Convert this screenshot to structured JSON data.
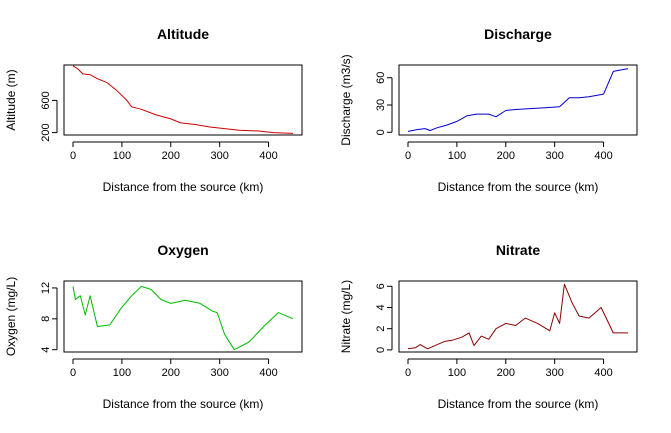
{
  "chart_data": [
    {
      "type": "line",
      "title": "Altitude",
      "xlabel": "Distance from the source (km)",
      "ylabel": "Altitude (m)",
      "xlim": [
        0,
        450
      ],
      "ylim": [
        170,
        1040
      ],
      "xticks": [
        0,
        100,
        200,
        300,
        400
      ],
      "yticks": [
        200,
        600
      ],
      "series": [
        {
          "color": "#cc0000",
          "x": [
            0,
            10,
            20,
            35,
            50,
            70,
            90,
            110,
            120,
            140,
            170,
            200,
            220,
            250,
            280,
            310,
            340,
            380,
            410,
            450
          ],
          "y": [
            1030,
            990,
            930,
            920,
            870,
            820,
            720,
            600,
            520,
            490,
            420,
            370,
            320,
            300,
            270,
            250,
            230,
            220,
            200,
            190
          ]
        }
      ]
    },
    {
      "type": "line",
      "title": "Discharge",
      "xlabel": "Distance from the source (km)",
      "ylabel": "Discharge (m3/s)",
      "xlim": [
        0,
        450
      ],
      "ylim": [
        -3,
        74
      ],
      "xticks": [
        0,
        100,
        200,
        300,
        400
      ],
      "yticks": [
        0,
        30,
        60
      ],
      "series": [
        {
          "color": "#0000cc",
          "x": [
            0,
            20,
            35,
            45,
            60,
            80,
            100,
            120,
            140,
            165,
            180,
            200,
            220,
            250,
            280,
            310,
            330,
            350,
            370,
            400,
            420,
            450
          ],
          "y": [
            1,
            3,
            4,
            2,
            5,
            8,
            12,
            18,
            20,
            20,
            17,
            24,
            25,
            26,
            27,
            28,
            38,
            38,
            39,
            42,
            67,
            70
          ]
        }
      ]
    },
    {
      "type": "line",
      "title": "Oxygen",
      "xlabel": "Distance from the source (km)",
      "ylabel": "Oxygen (mg/L)",
      "xlim": [
        0,
        450
      ],
      "ylim": [
        3.7,
        12.9
      ],
      "xticks": [
        0,
        100,
        200,
        300,
        400
      ],
      "yticks": [
        4,
        8,
        12
      ],
      "series": [
        {
          "color": "#00bb00",
          "x": [
            0,
            5,
            15,
            25,
            35,
            50,
            75,
            100,
            120,
            140,
            160,
            180,
            200,
            230,
            260,
            285,
            295,
            310,
            330,
            360,
            390,
            420,
            450
          ],
          "y": [
            12.2,
            10.5,
            11.0,
            8.5,
            11.0,
            7.0,
            7.2,
            9.5,
            11.0,
            12.2,
            11.8,
            10.5,
            10.0,
            10.4,
            10.0,
            9.0,
            8.8,
            6.0,
            4.0,
            5.0,
            7.0,
            8.8,
            8.0
          ]
        }
      ]
    },
    {
      "type": "line",
      "title": "Nitrate",
      "xlabel": "Distance from the source (km)",
      "ylabel": "Nitrate (mg/L)",
      "xlim": [
        0,
        450
      ],
      "ylim": [
        -0.2,
        6.5
      ],
      "xticks": [
        0,
        100,
        200,
        300,
        400
      ],
      "yticks": [
        0,
        2,
        4,
        6
      ],
      "series": [
        {
          "color": "#8b0000",
          "x": [
            0,
            15,
            25,
            40,
            60,
            75,
            90,
            110,
            125,
            135,
            150,
            165,
            180,
            200,
            220,
            240,
            265,
            290,
            300,
            310,
            320,
            335,
            350,
            370,
            395,
            420,
            450
          ],
          "y": [
            0.1,
            0.2,
            0.5,
            0.1,
            0.5,
            0.8,
            0.9,
            1.2,
            1.6,
            0.4,
            1.3,
            1.0,
            2.0,
            2.5,
            2.3,
            3.0,
            2.5,
            1.8,
            3.5,
            2.5,
            6.2,
            4.5,
            3.2,
            3.0,
            4.0,
            1.6,
            1.6
          ]
        }
      ]
    }
  ]
}
